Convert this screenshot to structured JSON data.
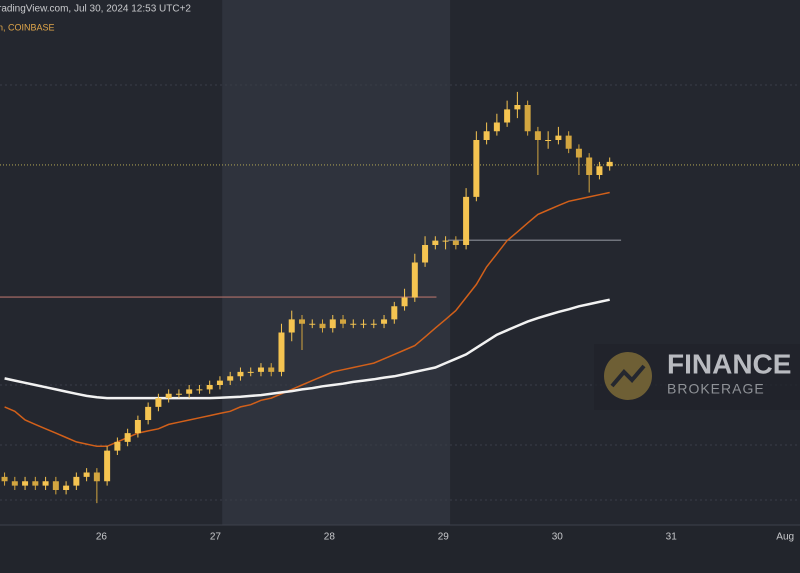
{
  "chart_data": {
    "type": "candlestick",
    "header": "radingView.com, Jul 30, 2024 12:53 UTC+2",
    "symbol": "h, COINBASE",
    "watermark": {
      "title": "FINANCE",
      "subtitle": "BROKERAGE"
    },
    "xlim": [
      25.11,
      32.13
    ],
    "xticks": [
      26,
      27,
      28,
      29,
      30,
      31,
      {
        "value": 32,
        "label": "Aug"
      }
    ],
    "ylim": [
      0,
      120
    ],
    "highlight": [
      27.06,
      29.06
    ],
    "up_color": "#f5c451",
    "down_color": "#d3a640",
    "x": [
      25.15,
      25.24,
      25.33,
      25.42,
      25.51,
      25.6,
      25.69,
      25.78,
      25.87,
      25.96,
      26.05,
      26.14,
      26.23,
      26.32,
      26.41,
      26.5,
      26.59,
      26.68,
      26.77,
      26.86,
      26.95,
      27.04,
      27.13,
      27.22,
      27.31,
      27.4,
      27.49,
      27.58,
      27.67,
      27.76,
      27.85,
      27.94,
      28.03,
      28.12,
      28.21,
      28.3,
      28.39,
      28.48,
      28.57,
      28.66,
      28.75,
      28.84,
      28.93,
      29.02,
      29.11,
      29.2,
      29.29,
      29.38,
      29.47,
      29.56,
      29.65,
      29.74,
      29.83,
      29.92,
      30.01,
      30.1,
      30.19,
      30.28,
      30.37,
      30.46
    ],
    "open": [
      11,
      10,
      9,
      10,
      9,
      10,
      8,
      9,
      11,
      12,
      10,
      17,
      19,
      21,
      24,
      27,
      29,
      30,
      30,
      31,
      31,
      32,
      33,
      34,
      35,
      35,
      36,
      35,
      44,
      47,
      46,
      46,
      45,
      47,
      46,
      46,
      46,
      46,
      47,
      50,
      52,
      60,
      64,
      65,
      65,
      64,
      75,
      88,
      90,
      92,
      95,
      96,
      90,
      88,
      88,
      89,
      86,
      84,
      80,
      82
    ],
    "high": [
      12,
      11,
      11,
      11,
      11,
      11,
      10,
      12,
      13,
      13,
      18,
      20,
      22,
      25,
      28,
      30,
      31,
      31,
      32,
      32,
      33,
      34,
      35,
      36,
      36,
      37,
      37,
      46,
      49,
      48,
      47,
      47,
      48,
      48,
      47,
      47,
      47,
      48,
      51,
      54,
      62,
      66,
      66,
      66,
      66,
      77,
      90,
      92,
      94,
      97,
      99,
      97,
      91,
      90,
      91,
      90,
      87,
      85,
      83,
      84
    ],
    "low": [
      9,
      8,
      8,
      8,
      8,
      7,
      7,
      8,
      10,
      5,
      9,
      16,
      18,
      20,
      23,
      26,
      28,
      29,
      29,
      30,
      30,
      31,
      32,
      33,
      34,
      34,
      34,
      34,
      42,
      40,
      45,
      44,
      44,
      45,
      45,
      45,
      45,
      45,
      46,
      49,
      51,
      59,
      63,
      63,
      63,
      63,
      74,
      87,
      89,
      91,
      93,
      89,
      80,
      86,
      87,
      85,
      80,
      76,
      79,
      81
    ],
    "close": [
      10,
      9,
      10,
      9,
      10,
      8,
      9,
      11,
      12,
      10,
      17,
      19,
      21,
      24,
      27,
      29,
      30,
      30,
      31,
      31,
      32,
      33,
      34,
      35,
      35,
      36,
      35,
      44,
      47,
      46,
      46,
      45,
      47,
      46,
      46,
      46,
      46,
      47,
      50,
      52,
      60,
      64,
      65,
      65,
      64,
      75,
      88,
      90,
      92,
      95,
      96,
      90,
      88,
      88,
      89,
      86,
      84,
      80,
      82,
      83
    ],
    "lines": [
      {
        "color": "#d2601a",
        "values": [
          27,
          26,
          24,
          23,
          22,
          21,
          20,
          19,
          18.5,
          18,
          18,
          19,
          20,
          21,
          21.5,
          22,
          23,
          23.5,
          24,
          24.5,
          25,
          25.5,
          26,
          27,
          27.5,
          28.5,
          29,
          30,
          31,
          32,
          33,
          34,
          35,
          35.5,
          36,
          36.5,
          37,
          38,
          39,
          40,
          41,
          43,
          45,
          47,
          49,
          52,
          55,
          59,
          62,
          65,
          67,
          69,
          71,
          72,
          73,
          74,
          74.5,
          75,
          75.5,
          76
        ]
      },
      {
        "color": "#f2f2f2",
        "values": [
          33.5,
          33,
          32.5,
          32,
          31.5,
          31,
          30.5,
          30,
          29.5,
          29.2,
          29,
          29,
          29,
          29,
          29,
          29,
          29,
          29,
          29,
          29,
          29,
          29.1,
          29.2,
          29.3,
          29.5,
          29.7,
          30,
          30.3,
          30.6,
          31,
          31.3,
          31.7,
          32,
          32.3,
          32.7,
          33,
          33.3,
          33.7,
          34,
          34.5,
          35,
          35.5,
          36,
          37,
          38,
          39,
          40.5,
          42,
          43.5,
          44.5,
          45.5,
          46.5,
          47.3,
          48,
          48.7,
          49.3,
          50,
          50.5,
          51,
          51.5
        ]
      }
    ],
    "levels": [
      {
        "value": 52.1,
        "from": 25.11,
        "to": 28.94,
        "color": "#b0706a"
      },
      {
        "value": 65.1,
        "from": 29.04,
        "to": 30.56,
        "color": "#8a8d96"
      },
      {
        "value": 82.3,
        "from": 25.11,
        "to": 32.13,
        "color": "#a39a52",
        "dashed": true
      }
    ]
  }
}
